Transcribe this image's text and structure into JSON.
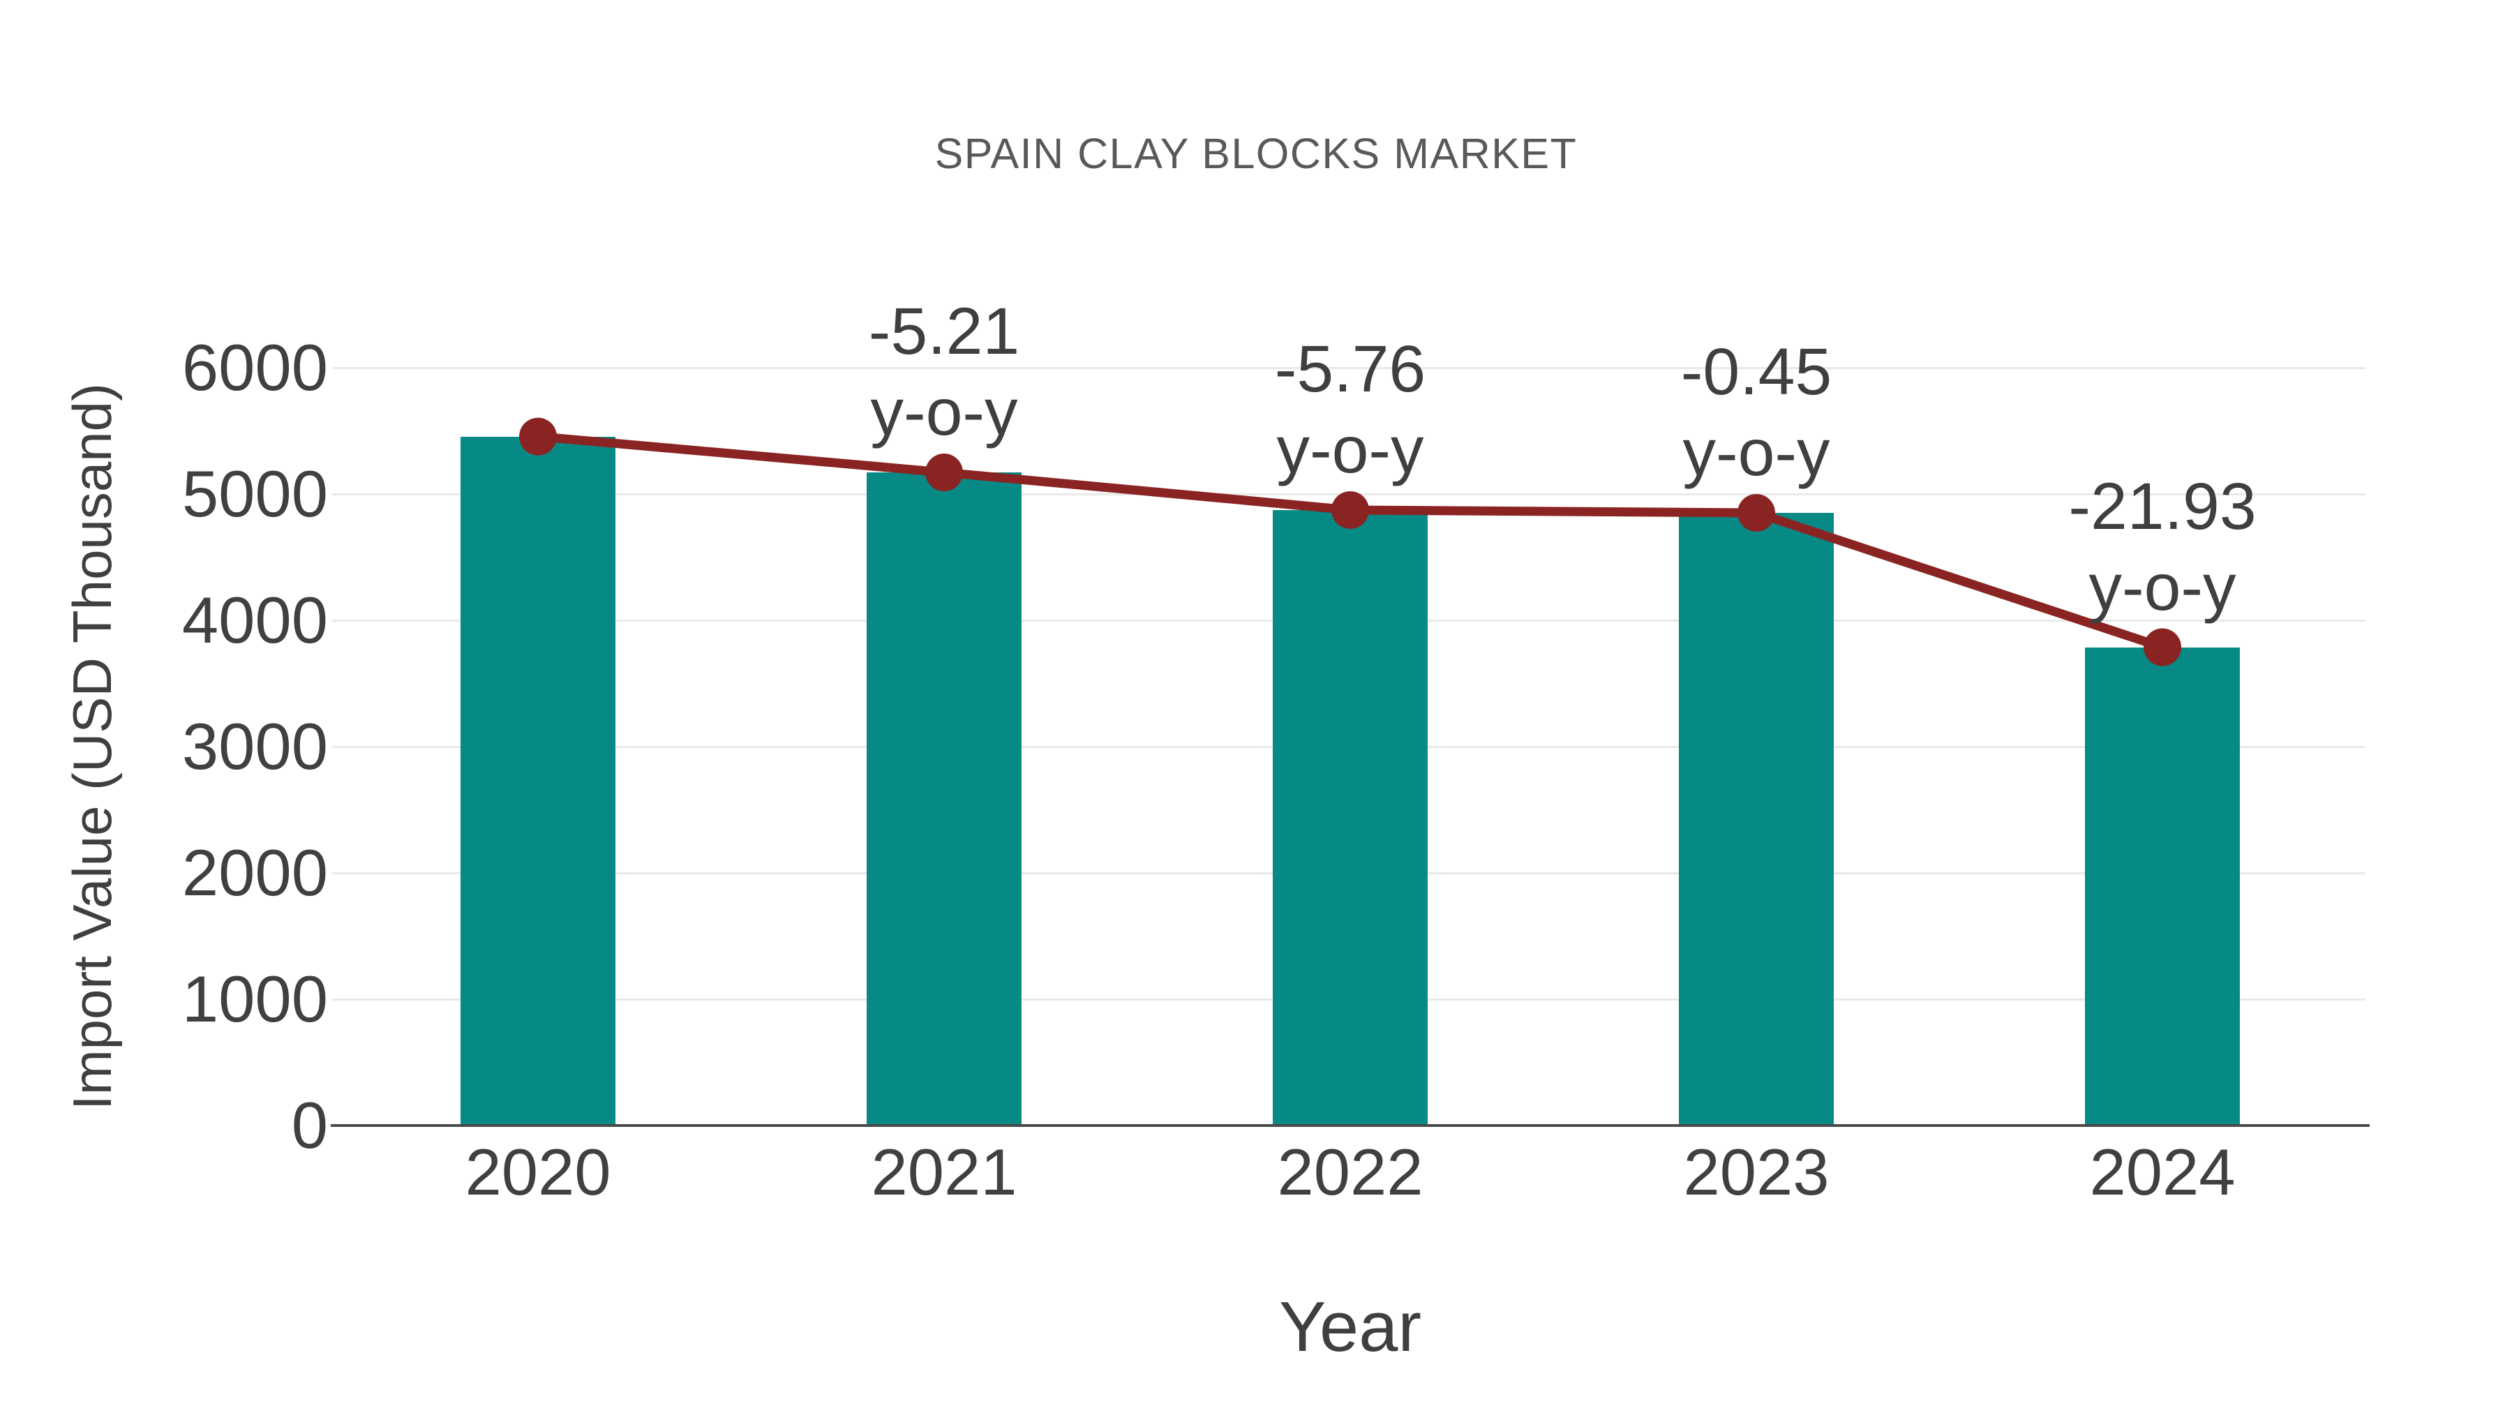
{
  "title": "SPAIN CLAY BLOCKS MARKET",
  "chart_data": {
    "type": "bar",
    "title": "SPAIN CLAY BLOCKS MARKET",
    "categories": [
      "2020",
      "2021",
      "2022",
      "2023",
      "2024"
    ],
    "series": [
      {
        "name": "Import Value bars",
        "type": "bar",
        "values": [
          5455,
          5171,
          4873,
          4851,
          3787
        ]
      },
      {
        "name": "Import Value trend line",
        "type": "line",
        "values": [
          5455,
          5171,
          4873,
          4851,
          3787
        ]
      }
    ],
    "annotations": [
      {
        "category": "2021",
        "value_label": "-5.21",
        "suffix_label": "y-o-y"
      },
      {
        "category": "2022",
        "value_label": "-5.76",
        "suffix_label": "y-o-y"
      },
      {
        "category": "2023",
        "value_label": "-0.45",
        "suffix_label": "y-o-y"
      },
      {
        "category": "2024",
        "value_label": "-21.93",
        "suffix_label": "y-o-y"
      }
    ],
    "xlabel": "Year",
    "ylabel": "Import Value (USD Thousand)",
    "ylim": [
      0,
      6000
    ],
    "ytick_step": 1000,
    "yticks": [
      "0",
      "1000",
      "2000",
      "3000",
      "4000",
      "5000",
      "6000"
    ],
    "grid": true,
    "legend": "none",
    "colors": {
      "bar": "#078a86",
      "line": "#8a2422",
      "marker": "#8a2422",
      "text": "#3f3f3f",
      "tick_text": "#404040",
      "title_text": "#595959",
      "gridline": "#e9e9e9",
      "axis": "#4a4a4a",
      "background": "#ffffff"
    }
  }
}
